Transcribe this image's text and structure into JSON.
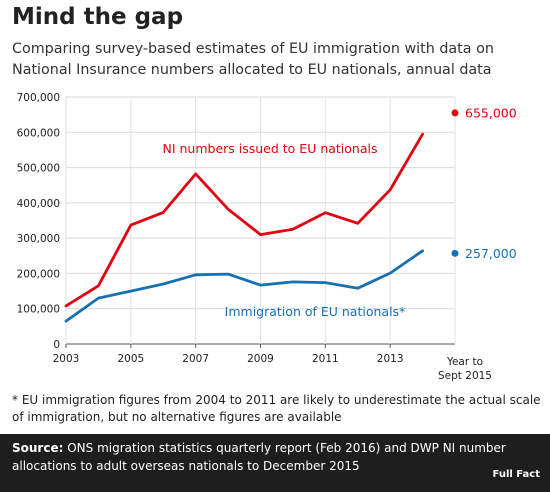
{
  "title": "Mind the gap",
  "subtitle": "Comparing survey-based estimates of EU immigration with data on National Insurance numbers allocated to EU nationals, annual data",
  "chart_data": {
    "type": "line",
    "x": [
      2003,
      2004,
      2005,
      2006,
      2007,
      2008,
      2009,
      2010,
      2011,
      2012,
      2013,
      2014
    ],
    "xticks": [
      2003,
      2005,
      2007,
      2009,
      2011,
      2013
    ],
    "xtick_labels": [
      "2003",
      "2005",
      "2007",
      "2009",
      "2011",
      "2013"
    ],
    "xlim": [
      2003,
      2015
    ],
    "ylim": [
      0,
      700000
    ],
    "yticks": [
      0,
      100000,
      200000,
      300000,
      400000,
      500000,
      600000,
      700000
    ],
    "ytick_labels": [
      "0",
      "100,000",
      "200,000",
      "300,000",
      "400,000",
      "500,000",
      "600,000",
      "700,000"
    ],
    "grid": true,
    "series": [
      {
        "name": "NI numbers issued to EU nationals",
        "color": "#e3000f",
        "values": [
          108000,
          165000,
          337000,
          373000,
          482000,
          382000,
          310000,
          325000,
          372000,
          342000,
          437000,
          595000
        ],
        "end_value": 655000,
        "end_label": "655,000"
      },
      {
        "name": "Immigration of EU nationals*",
        "color": "#1670b2",
        "values": [
          65000,
          130000,
          150000,
          170000,
          196000,
          198000,
          167000,
          176000,
          174000,
          158000,
          201000,
          264000
        ],
        "end_value": 257000,
        "end_label": "257,000"
      }
    ],
    "end_marker_label_line1": "Year to",
    "end_marker_label_line2": "Sept 2015"
  },
  "footnote": "* EU immigration figures from 2004 to 2011 are likely to underestimate the actual scale of immigration, but no alternative figures are available",
  "source": {
    "label": "Source:",
    "text": "ONS migration statistics quarterly report (Feb 2016) and DWP NI number allocations to adult overseas nationals to December 2015"
  },
  "logo_text": "Full Fact"
}
